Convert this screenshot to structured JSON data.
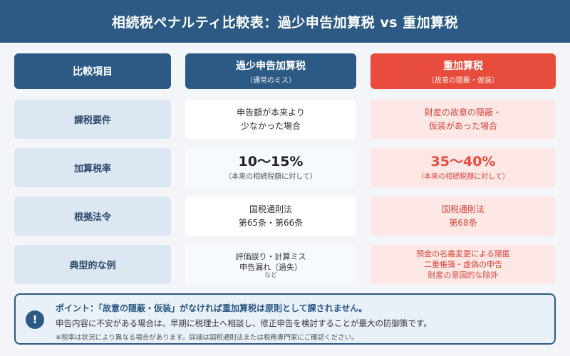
{
  "header": {
    "title": "相続税ペナルティ比較表：過少申告加算税 vs 重加算税"
  },
  "table": {
    "head": {
      "col1": "比較項目",
      "col2_main": "過少申告加算税",
      "col2_sub": "（通常のミス）",
      "col3_main": "重加算税",
      "col3_sub": "（故意の隠蔽・仮装）"
    },
    "rows": [
      {
        "label": "課税要件",
        "col2_lines": [
          "申告額が本来より",
          "少なかった場合"
        ],
        "col3_lines": [
          "財産の故意の隠蔽・",
          "仮装があった場合"
        ]
      },
      {
        "label": "加算税率",
        "col2_big": "10〜15%",
        "col2_small": "（本来の相続税額に対して）",
        "col3_big": "35〜40%",
        "col3_small": "（本来の相続税額に対して）"
      },
      {
        "label": "根拠法令",
        "col2_lines": [
          "国税通則法",
          "第65条・第66条"
        ],
        "col3_lines": [
          "国税通則法",
          "第68条"
        ]
      },
      {
        "label": "典型的な例",
        "col2_lines": [
          "評価誤り・計算ミス",
          "申告漏れ（過失）"
        ],
        "col2_extra": "など",
        "col3_lines": [
          "預金の名義変更による隠匿",
          "二重帳簿・虚偽の申告",
          "財産の意図的な除外"
        ]
      }
    ]
  },
  "notice": {
    "icon": "exclamation-icon",
    "icon_glyph": "!",
    "title": "ポイント：「故意の隠蔽・仮装」がなければ重加算税は原則として課されません。",
    "body": "申告内容に不安がある場合は、早期に税理士へ相談し、修正申告を検討することが最大の防御策です。",
    "note": "※税率は状況により異なる場合があります。詳細は国税通則法または税務専門家にご確認ください。"
  },
  "colors": {
    "header_bg": "#2c5a85",
    "accent_red": "#e74c3c",
    "label_bg": "#dce7f2",
    "red_cell_bg": "#fde8e6"
  }
}
